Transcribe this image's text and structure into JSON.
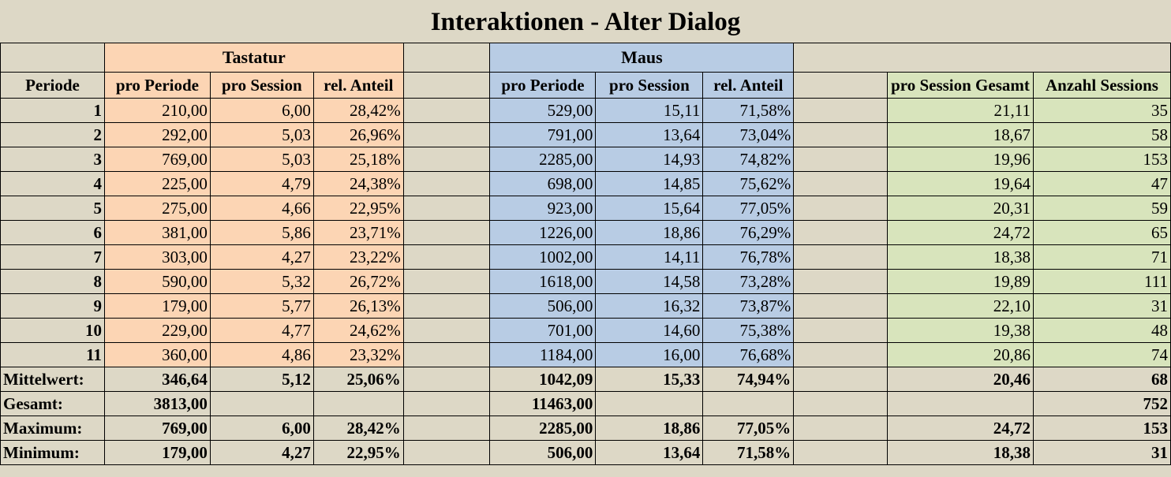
{
  "title": "Interaktionen - Alter Dialog",
  "groups": {
    "keyboard": "Tastatur",
    "mouse": "Maus"
  },
  "headers": {
    "period": "Periode",
    "k_period": "pro Periode",
    "k_session": "pro Session",
    "k_share": "rel. Anteil",
    "m_period": "pro Periode",
    "m_session": "pro Session",
    "m_share": "rel. Anteil",
    "session_total": "pro Session Gesamt",
    "sessions": "Anzahl Sessions"
  },
  "chart_data": {
    "type": "table",
    "title": "Interaktionen - Alter Dialog",
    "columns": [
      "Periode",
      "Tastatur pro Periode",
      "Tastatur pro Session",
      "Tastatur rel. Anteil",
      "Maus pro Periode",
      "Maus pro Session",
      "Maus rel. Anteil",
      "pro Session Gesamt",
      "Anzahl Sessions"
    ],
    "rows": [
      [
        "1",
        "210,00",
        "6,00",
        "28,42%",
        "529,00",
        "15,11",
        "71,58%",
        "21,11",
        "35"
      ],
      [
        "2",
        "292,00",
        "5,03",
        "26,96%",
        "791,00",
        "13,64",
        "73,04%",
        "18,67",
        "58"
      ],
      [
        "3",
        "769,00",
        "5,03",
        "25,18%",
        "2285,00",
        "14,93",
        "74,82%",
        "19,96",
        "153"
      ],
      [
        "4",
        "225,00",
        "4,79",
        "24,38%",
        "698,00",
        "14,85",
        "75,62%",
        "19,64",
        "47"
      ],
      [
        "5",
        "275,00",
        "4,66",
        "22,95%",
        "923,00",
        "15,64",
        "77,05%",
        "20,31",
        "59"
      ],
      [
        "6",
        "381,00",
        "5,86",
        "23,71%",
        "1226,00",
        "18,86",
        "76,29%",
        "24,72",
        "65"
      ],
      [
        "7",
        "303,00",
        "4,27",
        "23,22%",
        "1002,00",
        "14,11",
        "76,78%",
        "18,38",
        "71"
      ],
      [
        "8",
        "590,00",
        "5,32",
        "26,72%",
        "1618,00",
        "14,58",
        "73,28%",
        "19,89",
        "111"
      ],
      [
        "9",
        "179,00",
        "5,77",
        "26,13%",
        "506,00",
        "16,32",
        "73,87%",
        "22,10",
        "31"
      ],
      [
        "10",
        "229,00",
        "4,77",
        "24,62%",
        "701,00",
        "14,60",
        "75,38%",
        "19,38",
        "48"
      ],
      [
        "11",
        "360,00",
        "4,86",
        "23,32%",
        "1184,00",
        "16,00",
        "76,68%",
        "20,86",
        "74"
      ]
    ],
    "summary": [
      [
        "Mittelwert:",
        "346,64",
        "5,12",
        "25,06%",
        "1042,09",
        "15,33",
        "74,94%",
        "20,46",
        "68"
      ],
      [
        "Gesamt:",
        "3813,00",
        "",
        "",
        "11463,00",
        "",
        "",
        "",
        "752"
      ],
      [
        "Maximum:",
        "769,00",
        "6,00",
        "28,42%",
        "2285,00",
        "18,86",
        "77,05%",
        "24,72",
        "153"
      ],
      [
        "Minimum:",
        "179,00",
        "4,27",
        "22,95%",
        "506,00",
        "13,64",
        "71,58%",
        "18,38",
        "31"
      ]
    ]
  },
  "colors": {
    "background": "#ddd8c6",
    "keyboard": "#fcd5b4",
    "mouse": "#b8cce4",
    "session": "#d8e4bc"
  }
}
